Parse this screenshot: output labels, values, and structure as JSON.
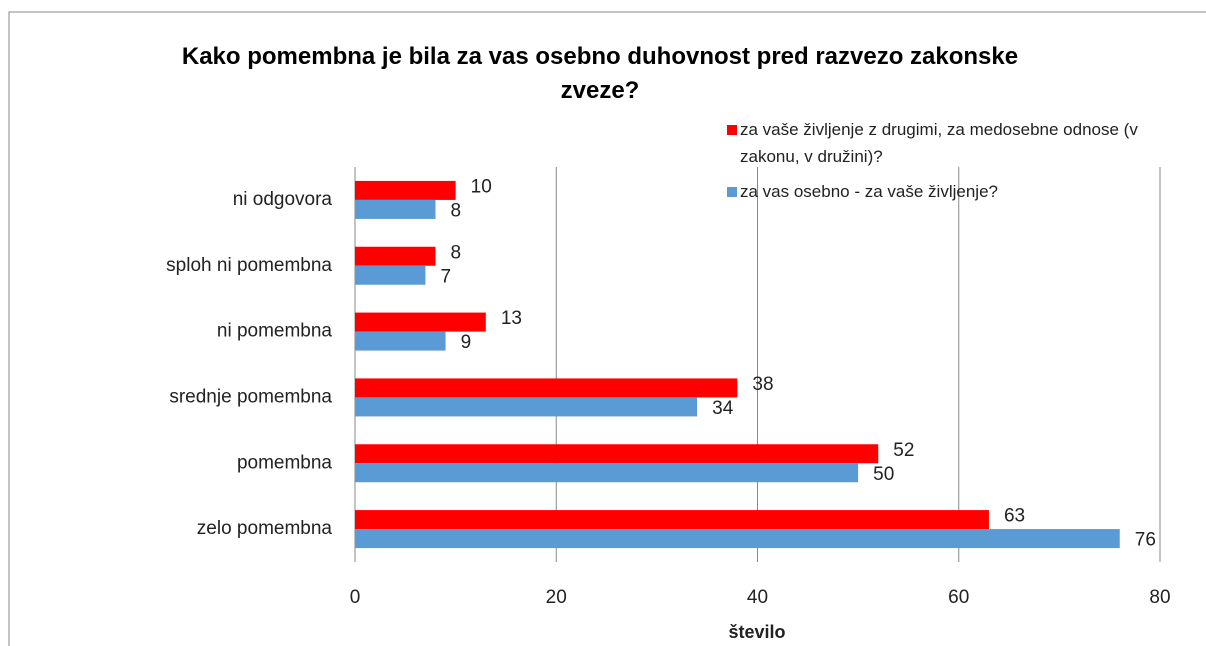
{
  "chart_data": {
    "type": "hbar",
    "title": "Kako pomembna je bila za vas osebno duhovnost pred razvezo zakonske zveze?",
    "categories": [
      "ni odgovora",
      "sploh ni pomembna",
      "ni pomembna",
      "srednje pomembna",
      "pomembna",
      "zelo pomembna"
    ],
    "series": [
      {
        "name": "za vaše življenje z drugimi, za medosebne odnose (v zakonu, v družini)?",
        "color": "#ff0000",
        "values": [
          10,
          8,
          13,
          38,
          52,
          63
        ]
      },
      {
        "name": "za vas osebno - za vaše življenje?",
        "color": "#5b9bd5",
        "values": [
          8,
          7,
          9,
          34,
          50,
          76
        ]
      }
    ],
    "xlim": [
      0,
      80
    ],
    "xticks": [
      0,
      20,
      40,
      60,
      80
    ],
    "xlabel": "število",
    "grid": true,
    "legend": "top-right"
  }
}
